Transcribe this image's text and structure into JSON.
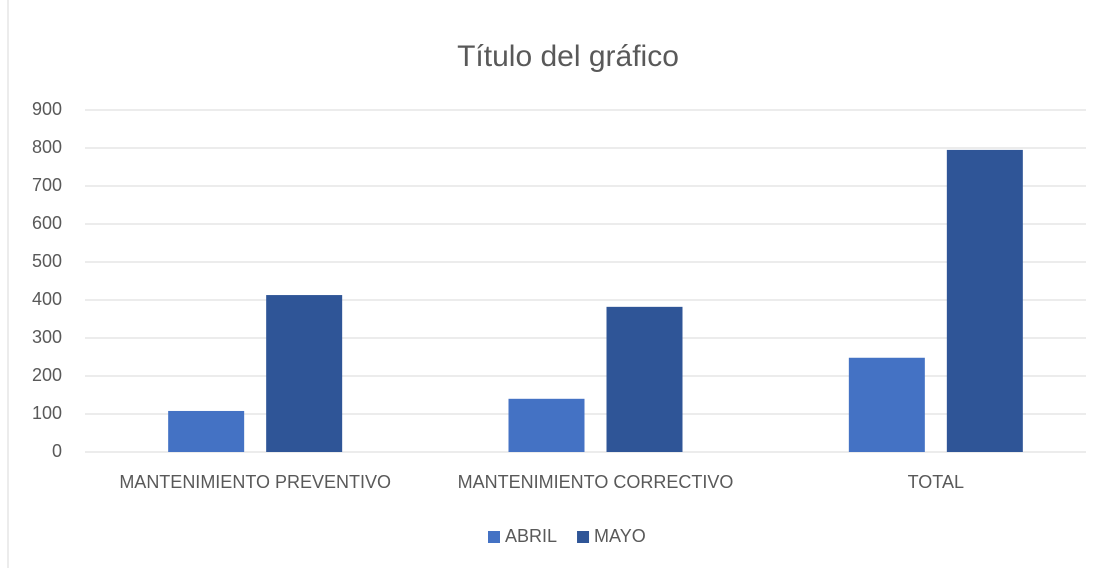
{
  "chart_data": {
    "type": "bar",
    "title": "Título del gráfico",
    "categories": [
      "MANTENIMIENTO PREVENTIVO",
      "MANTENIMIENTO CORRECTIVO",
      "TOTAL"
    ],
    "series": [
      {
        "name": "ABRIL",
        "color": "#4472c4",
        "values": [
          108,
          140,
          248
        ]
      },
      {
        "name": "MAYO",
        "color": "#2f5597",
        "values": [
          413,
          382,
          795
        ]
      }
    ],
    "ylim": [
      0,
      900
    ],
    "yticks": [
      0,
      100,
      200,
      300,
      400,
      500,
      600,
      700,
      800,
      900
    ],
    "grid": true,
    "legend": "bottom"
  }
}
